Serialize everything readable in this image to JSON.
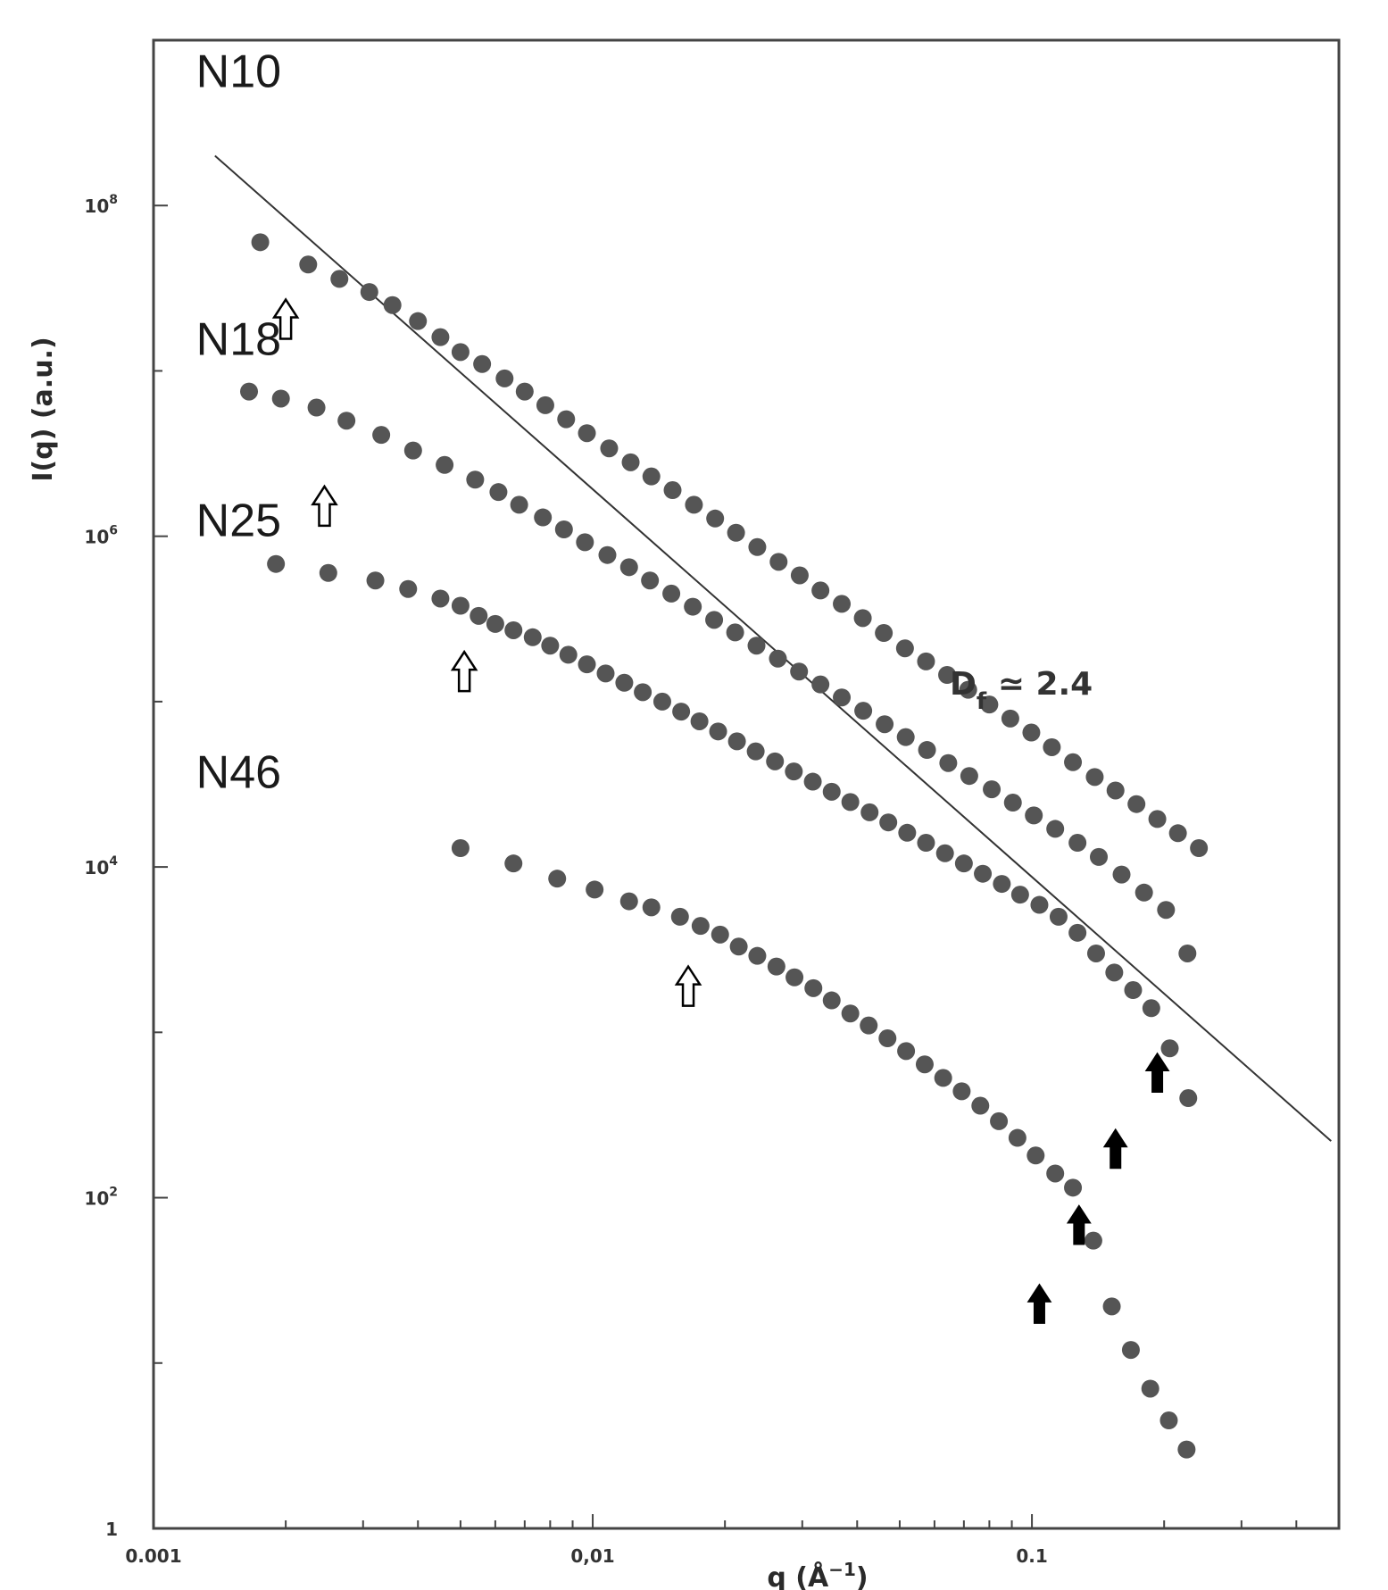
{
  "chart_data": {
    "type": "scatter",
    "title": "",
    "xlabel": "q (Å",
    "xlabel_exp": "−1",
    "xlabel_close": ")",
    "ylabel": "I(q) (a.u.)",
    "x_scale": "log",
    "y_scale": "log",
    "xlim": [
      0.001,
      0.5
    ],
    "ylim": [
      1,
      1000000000
    ],
    "x_ticks": [
      {
        "value": 0.001,
        "label": "0.001"
      },
      {
        "value": 0.01,
        "label": "0,01"
      },
      {
        "value": 0.1,
        "label": "0.1"
      }
    ],
    "y_ticks": [
      {
        "value": 1,
        "label": "1",
        "exp": ""
      },
      {
        "value": 100,
        "label": "10",
        "exp": "2"
      },
      {
        "value": 10000,
        "label": "10",
        "exp": "4"
      },
      {
        "value": 1000000,
        "label": "10",
        "exp": "6"
      },
      {
        "value": 100000000,
        "label": "10",
        "exp": "8"
      }
    ],
    "grid": false,
    "marker_color": "#555555",
    "series": [
      {
        "name": "N10",
        "x": [
          0.00175,
          0.00225,
          0.00265,
          0.0031,
          0.0035,
          0.004,
          0.0045,
          0.005,
          0.0056,
          0.0063,
          0.007,
          0.0078,
          0.0087,
          0.0097,
          0.0109,
          0.0122,
          0.0136,
          0.0152,
          0.017,
          0.019,
          0.0212,
          0.0237,
          0.0265,
          0.0296,
          0.033,
          0.0369,
          0.0412,
          0.046,
          0.0514,
          0.0574,
          0.0641,
          0.0716,
          0.08,
          0.0893,
          0.0997,
          0.111,
          0.124,
          0.139,
          0.155,
          0.173,
          0.193,
          0.215,
          0.24
        ],
        "y": [
          60000000,
          44000000,
          36000000,
          30000000,
          25000000,
          20000000,
          16000000,
          13000000,
          11000000,
          9000000,
          7500000,
          6200000,
          5100000,
          4200000,
          3400000,
          2800000,
          2300000,
          1900000,
          1550000,
          1280000,
          1050000,
          860000,
          700000,
          580000,
          470000,
          390000,
          320000,
          260000,
          210000,
          175000,
          145000,
          118000,
          96000,
          79000,
          65000,
          53000,
          43000,
          35000,
          29000,
          24000,
          19500,
          16000,
          13000
        ]
      },
      {
        "name": "N18",
        "x": [
          0.00165,
          0.00195,
          0.00235,
          0.00275,
          0.0033,
          0.0039,
          0.0046,
          0.0054,
          0.0061,
          0.0068,
          0.0077,
          0.0086,
          0.0096,
          0.0108,
          0.0121,
          0.0135,
          0.0151,
          0.0169,
          0.0189,
          0.0211,
          0.0236,
          0.0264,
          0.0295,
          0.033,
          0.0369,
          0.0413,
          0.0462,
          0.0516,
          0.0577,
          0.0645,
          0.072,
          0.081,
          0.0905,
          0.101,
          0.113,
          0.127,
          0.142,
          0.16,
          0.18,
          0.202,
          0.226
        ],
        "y": [
          7500000,
          6800000,
          6000000,
          5000000,
          4100000,
          3300000,
          2700000,
          2200000,
          1850000,
          1550000,
          1300000,
          1100000,
          920000,
          770000,
          650000,
          540000,
          450000,
          375000,
          312000,
          262000,
          218000,
          182000,
          152000,
          127000,
          106000,
          88000,
          73000,
          61000,
          51000,
          42500,
          35500,
          29500,
          24500,
          20500,
          17000,
          14000,
          11500,
          9000,
          7000,
          5500,
          3000
        ]
      },
      {
        "name": "N25",
        "x": [
          0.0019,
          0.0025,
          0.0032,
          0.0038,
          0.0045,
          0.005,
          0.0055,
          0.006,
          0.0066,
          0.0073,
          0.008,
          0.0088,
          0.0097,
          0.0107,
          0.0118,
          0.013,
          0.0144,
          0.0159,
          0.0175,
          0.0193,
          0.0213,
          0.0235,
          0.026,
          0.0287,
          0.0317,
          0.035,
          0.0386,
          0.0427,
          0.0471,
          0.052,
          0.0574,
          0.0634,
          0.07,
          0.0773,
          0.0854,
          0.094,
          0.104,
          0.115,
          0.127,
          0.14,
          0.154,
          0.17,
          0.187,
          0.206,
          0.227
        ],
        "y": [
          680000,
          600000,
          540000,
          480000,
          420000,
          380000,
          330000,
          295000,
          270000,
          245000,
          218000,
          192000,
          168000,
          148000,
          130000,
          114000,
          100000,
          87000,
          76000,
          66000,
          57500,
          50000,
          43500,
          37800,
          32800,
          28500,
          24700,
          21400,
          18600,
          16100,
          14000,
          12100,
          10500,
          9100,
          7900,
          6800,
          5900,
          5000,
          4000,
          3000,
          2300,
          1800,
          1400,
          800,
          400
        ]
      },
      {
        "name": "N46",
        "x": [
          0.005,
          0.0066,
          0.0083,
          0.0101,
          0.0121,
          0.0136,
          0.0158,
          0.0176,
          0.0195,
          0.0215,
          0.0237,
          0.0262,
          0.0288,
          0.0318,
          0.035,
          0.0386,
          0.0425,
          0.0469,
          0.0517,
          0.057,
          0.0628,
          0.0692,
          0.0763,
          0.0841,
          0.0927,
          0.102,
          0.113,
          0.124,
          0.138,
          0.152,
          0.168,
          0.186,
          0.205,
          0.225
        ],
        "y": [
          13000,
          10500,
          8500,
          7300,
          6200,
          5700,
          5000,
          4400,
          3900,
          3300,
          2900,
          2500,
          2150,
          1850,
          1560,
          1300,
          1100,
          920,
          770,
          640,
          530,
          440,
          360,
          290,
          230,
          180,
          140,
          115,
          55,
          22,
          12,
          7,
          4.5,
          3
        ]
      }
    ],
    "series_labels": [
      {
        "name": "N10",
        "q": 0.00125,
        "i": 520000000
      },
      {
        "name": "N18",
        "q": 0.00125,
        "i": 12500000
      },
      {
        "name": "N25",
        "q": 0.00125,
        "i": 1000000
      },
      {
        "name": "N46",
        "q": 0.00125,
        "i": 30000
      }
    ],
    "fit_line": {
      "from": [
        0.00138,
        200000000
      ],
      "to": [
        0.48,
        220
      ]
    },
    "annotation": {
      "text_main": "D",
      "text_sub": "f",
      "text_rest": " ≃ 2.4",
      "q": 0.065,
      "i": 110000
    },
    "open_arrows": [
      {
        "q": 0.002,
        "i": 27000000
      },
      {
        "q": 0.00245,
        "i": 2000000
      },
      {
        "q": 0.0051,
        "i": 200000
      },
      {
        "q": 0.0165,
        "i": 2500
      }
    ],
    "filled_arrows": [
      {
        "q": 0.193,
        "i": 750
      },
      {
        "q": 0.155,
        "i": 260
      },
      {
        "q": 0.128,
        "i": 90
      },
      {
        "q": 0.104,
        "i": 30
      }
    ]
  }
}
